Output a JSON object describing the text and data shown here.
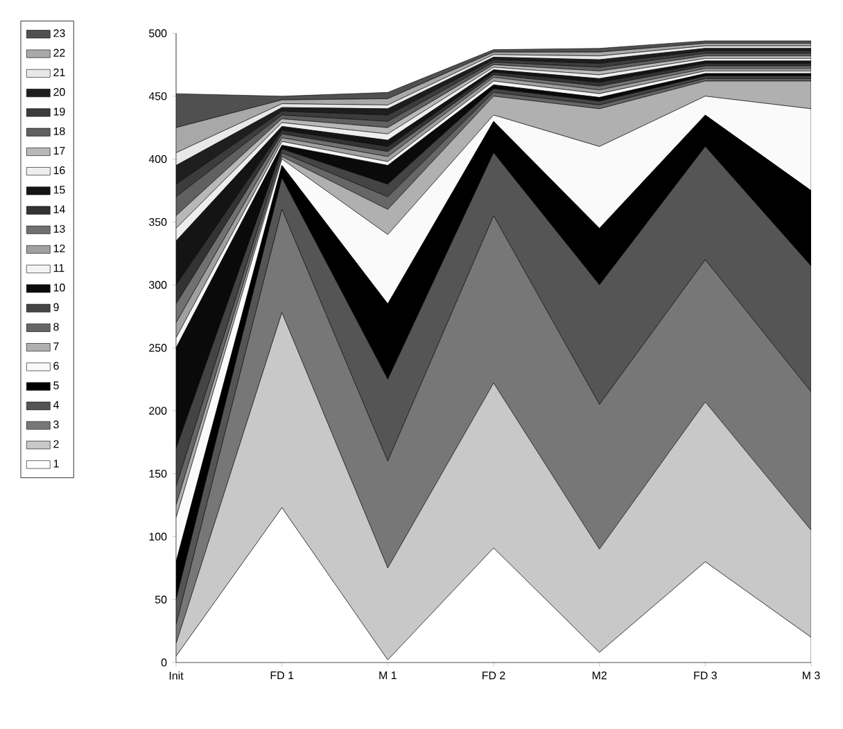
{
  "chart_data": {
    "type": "area",
    "stacked": true,
    "categories": [
      "Init",
      "FD 1",
      "M 1",
      "FD 2",
      "M2",
      "FD 3",
      "M 3"
    ],
    "ylim": [
      0,
      500
    ],
    "yticks": [
      0,
      50,
      100,
      150,
      200,
      250,
      300,
      350,
      400,
      450,
      500
    ],
    "legend": "left",
    "grid": false,
    "series": [
      {
        "name": "1",
        "color": "#ffffff",
        "values": [
          5,
          123,
          2,
          91,
          8,
          80,
          20
        ]
      },
      {
        "name": "2",
        "color": "#c8c8c8",
        "values": [
          10,
          155,
          73,
          131,
          82,
          127,
          85
        ]
      },
      {
        "name": "3",
        "color": "#777777",
        "values": [
          15,
          82,
          85,
          133,
          115,
          113,
          110
        ]
      },
      {
        "name": "4",
        "color": "#555555",
        "values": [
          20,
          25,
          65,
          50,
          95,
          90,
          100
        ]
      },
      {
        "name": "5",
        "color": "#000000",
        "values": [
          30,
          10,
          60,
          25,
          45,
          25,
          60
        ]
      },
      {
        "name": "6",
        "color": "#fafafa",
        "values": [
          35,
          5,
          55,
          5,
          65,
          15,
          65
        ]
      },
      {
        "name": "7",
        "color": "#b0b0b0",
        "values": [
          10,
          2,
          20,
          15,
          30,
          12,
          22
        ]
      },
      {
        "name": "8",
        "color": "#666666",
        "values": [
          15,
          3,
          10,
          3,
          3,
          2,
          2
        ]
      },
      {
        "name": "9",
        "color": "#444444",
        "values": [
          30,
          3,
          10,
          3,
          3,
          2,
          2
        ]
      },
      {
        "name": "10",
        "color": "#0a0a0a",
        "values": [
          80,
          3,
          15,
          3,
          3,
          2,
          2
        ]
      },
      {
        "name": "11",
        "color": "#f4f4f4",
        "values": [
          8,
          3,
          3,
          3,
          3,
          2,
          2
        ]
      },
      {
        "name": "12",
        "color": "#a0a0a0",
        "values": [
          12,
          3,
          4,
          3,
          3,
          2,
          2
        ]
      },
      {
        "name": "13",
        "color": "#707070",
        "values": [
          15,
          3,
          4,
          2,
          3,
          2,
          2
        ]
      },
      {
        "name": "14",
        "color": "#333333",
        "values": [
          15,
          3,
          4,
          2,
          3,
          2,
          2
        ]
      },
      {
        "name": "15",
        "color": "#141414",
        "values": [
          35,
          3,
          5,
          2,
          3,
          2,
          2
        ]
      },
      {
        "name": "16",
        "color": "#eeeeee",
        "values": [
          10,
          3,
          5,
          2,
          3,
          2,
          2
        ]
      },
      {
        "name": "17",
        "color": "#b8b8b8",
        "values": [
          10,
          3,
          5,
          2,
          3,
          2,
          2
        ]
      },
      {
        "name": "18",
        "color": "#606060",
        "values": [
          15,
          3,
          5,
          2,
          3,
          2,
          2
        ]
      },
      {
        "name": "19",
        "color": "#3c3c3c",
        "values": [
          10,
          3,
          5,
          2,
          3,
          2,
          2
        ]
      },
      {
        "name": "20",
        "color": "#1e1e1e",
        "values": [
          15,
          3,
          5,
          2,
          3,
          2,
          2
        ]
      },
      {
        "name": "21",
        "color": "#e8e8e8",
        "values": [
          10,
          3,
          3,
          2,
          3,
          2,
          2
        ]
      },
      {
        "name": "22",
        "color": "#a8a8a8",
        "values": [
          20,
          3,
          5,
          2,
          3,
          2,
          2
        ]
      },
      {
        "name": "23",
        "color": "#505050",
        "values": [
          27,
          3,
          5,
          2,
          3,
          2,
          2
        ]
      }
    ]
  }
}
